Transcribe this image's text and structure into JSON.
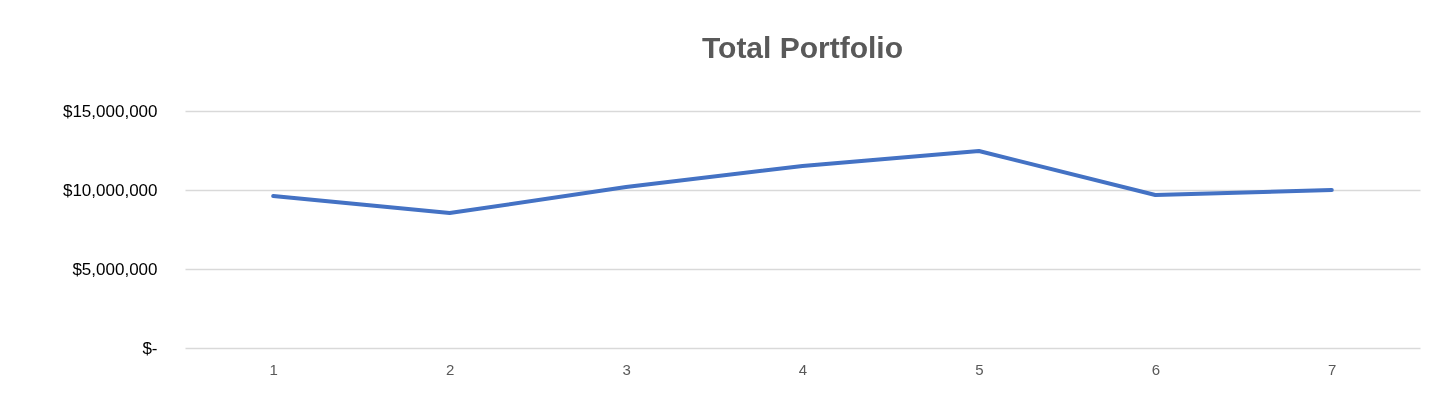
{
  "chart_data": {
    "type": "line",
    "title": "Total Portfolio",
    "categories": [
      "1",
      "2",
      "3",
      "4",
      "5",
      "6",
      "7"
    ],
    "series": [
      {
        "color": "#4472c4",
        "values": [
          9620000,
          8540000,
          10190000,
          11520000,
          12470000,
          9680000,
          10000000
        ]
      }
    ],
    "ylim": [
      0,
      15000000
    ],
    "yticks": [
      {
        "value": 0,
        "label": "$-"
      },
      {
        "value": 5000000,
        "label": "$5,000,000"
      },
      {
        "value": 10000000,
        "label": "$10,000,000"
      },
      {
        "value": 15000000,
        "label": "$15,000,000"
      }
    ],
    "grid": "y",
    "line_style": "solid"
  }
}
